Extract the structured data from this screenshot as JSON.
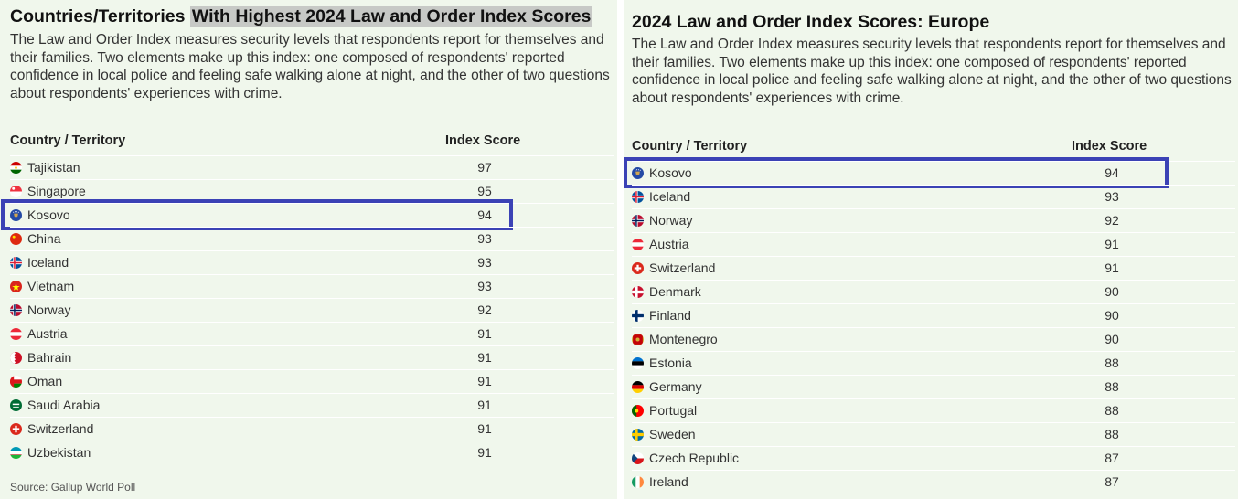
{
  "chart_data": [
    {
      "type": "table",
      "title_plain": "Countries/Territories",
      "title_highlight": "With Highest 2024 Law and Order Index Scores",
      "description": "The Law and Order Index measures security levels that respondents report for themselves and their families. Two elements make up this index: one composed of respondents' reported confidence in local police and feeling safe walking alone at night, and the other of two questions about respondents' experiences with crime.",
      "columns": [
        "Country / Territory",
        "Index Score"
      ],
      "highlighted": "Kosovo",
      "rows": [
        {
          "name": "Tajikistan",
          "score": 97,
          "flag": "tajikistan-flag"
        },
        {
          "name": "Singapore",
          "score": 95,
          "flag": "singapore-flag"
        },
        {
          "name": "Kosovo",
          "score": 94,
          "flag": "kosovo-flag"
        },
        {
          "name": "China",
          "score": 93,
          "flag": "china-flag"
        },
        {
          "name": "Iceland",
          "score": 93,
          "flag": "iceland-flag"
        },
        {
          "name": "Vietnam",
          "score": 93,
          "flag": "vietnam-flag"
        },
        {
          "name": "Norway",
          "score": 92,
          "flag": "norway-flag"
        },
        {
          "name": "Austria",
          "score": 91,
          "flag": "austria-flag"
        },
        {
          "name": "Bahrain",
          "score": 91,
          "flag": "bahrain-flag"
        },
        {
          "name": "Oman",
          "score": 91,
          "flag": "oman-flag"
        },
        {
          "name": "Saudi Arabia",
          "score": 91,
          "flag": "saudi-arabia-flag"
        },
        {
          "name": "Switzerland",
          "score": 91,
          "flag": "switzerland-flag"
        },
        {
          "name": "Uzbekistan",
          "score": 91,
          "flag": "uzbekistan-flag"
        }
      ],
      "source": "Source: Gallup World Poll"
    },
    {
      "type": "table",
      "title": "2024 Law and Order Index Scores: Europe",
      "description": "The Law and Order Index measures security levels that respondents report for themselves and their families. Two elements make up this index: one composed of respondents' reported confidence in local police and feeling safe walking alone at night, and the other of two questions about respondents' experiences with crime.",
      "columns": [
        "Country / Territory",
        "Index Score"
      ],
      "highlighted": "Kosovo",
      "rows": [
        {
          "name": "Kosovo",
          "score": 94,
          "flag": "kosovo-flag"
        },
        {
          "name": "Iceland",
          "score": 93,
          "flag": "iceland-flag"
        },
        {
          "name": "Norway",
          "score": 92,
          "flag": "norway-flag"
        },
        {
          "name": "Austria",
          "score": 91,
          "flag": "austria-flag"
        },
        {
          "name": "Switzerland",
          "score": 91,
          "flag": "switzerland-flag"
        },
        {
          "name": "Denmark",
          "score": 90,
          "flag": "denmark-flag"
        },
        {
          "name": "Finland",
          "score": 90,
          "flag": "finland-flag"
        },
        {
          "name": "Montenegro",
          "score": 90,
          "flag": "montenegro-flag"
        },
        {
          "name": "Estonia",
          "score": 88,
          "flag": "estonia-flag"
        },
        {
          "name": "Germany",
          "score": 88,
          "flag": "germany-flag"
        },
        {
          "name": "Portugal",
          "score": 88,
          "flag": "portugal-flag"
        },
        {
          "name": "Sweden",
          "score": 88,
          "flag": "sweden-flag"
        },
        {
          "name": "Czech Republic",
          "score": 87,
          "flag": "czech-republic-flag"
        },
        {
          "name": "Ireland",
          "score": 87,
          "flag": "ireland-flag"
        }
      ]
    }
  ],
  "colors": {
    "panel_background": "#f0f7ec",
    "highlight_border": "#3b42b5",
    "title_highlight_background": "#c7c9c6"
  }
}
